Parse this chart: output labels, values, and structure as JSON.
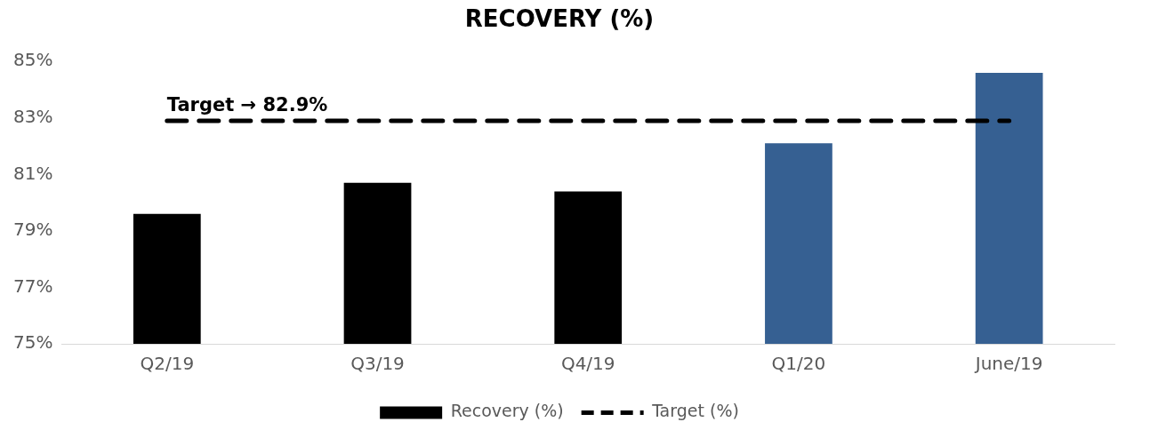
{
  "chart_data": {
    "type": "bar",
    "title": "RECOVERY (%)",
    "categories": [
      "Q2/19",
      "Q3/19",
      "Q4/19",
      "Q1/20",
      "June/19"
    ],
    "series": [
      {
        "name": "Recovery (%)",
        "color": "#000000",
        "colors": [
          "#000000",
          "#000000",
          "#000000",
          "#366092",
          "#366092"
        ],
        "values": [
          79.6,
          80.7,
          80.4,
          82.1,
          84.6
        ]
      },
      {
        "name": "Target (%)",
        "type": "line",
        "color": "#000000",
        "line_style": "dashed",
        "marker": "none",
        "values": [
          82.9,
          82.9,
          82.9,
          82.9,
          82.9
        ]
      }
    ],
    "ylim": [
      75,
      85
    ],
    "yticks": [
      {
        "value": 75,
        "label": "75%"
      },
      {
        "value": 77,
        "label": "77%"
      },
      {
        "value": 79,
        "label": "79%"
      },
      {
        "value": 81,
        "label": "81%"
      },
      {
        "value": 83,
        "label": "83%"
      },
      {
        "value": 85,
        "label": "85%"
      }
    ],
    "grid": false,
    "legend": "bottom",
    "annotations": [
      {
        "text": "Target → 82.9%",
        "x": "Q2/19",
        "y": 82.9
      }
    ]
  }
}
